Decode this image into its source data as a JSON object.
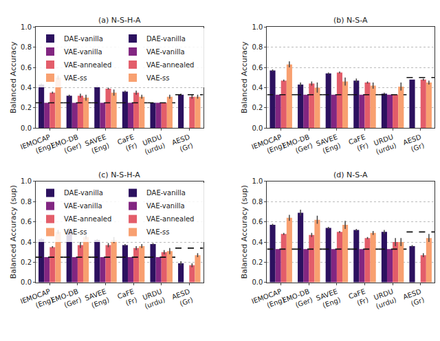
{
  "chart_data": [
    {
      "type": "bar",
      "title": "(a) N-S-H-A",
      "y_label": "Balanced Accuracy",
      "categories": [
        "IEMOCAP\n(Eng)",
        "EMO-DB\n(Ger)",
        "SAVEE\n(Eng)",
        "CaFE\n(Fr)",
        "URDU\n(urdu)",
        "AESD\n(Gr)"
      ],
      "series": [
        {
          "name": "DAE-vanilla",
          "color": "#2c115f",
          "values": [
            0.43,
            0.32,
            0.41,
            0.36,
            0.25,
            0.33
          ],
          "errors": [
            0.01,
            0.01,
            0.01,
            0.01,
            0.0,
            0.01
          ]
        },
        {
          "name": "VAE-vanilla",
          "color": "#822681",
          "values": [
            0.25,
            0.25,
            0.25,
            0.25,
            0.25,
            null
          ],
          "errors": [
            0.0,
            0.0,
            0.0,
            0.0,
            0.0,
            null
          ]
        },
        {
          "name": "VAE-annealed",
          "color": "#e35d6a",
          "values": [
            0.35,
            0.32,
            0.39,
            0.35,
            0.25,
            0.31
          ],
          "errors": [
            0.01,
            0.02,
            0.01,
            0.02,
            0.0,
            0.02
          ]
        },
        {
          "name": "VAE-ss",
          "color": "#f8a070",
          "values": [
            0.5,
            0.3,
            0.35,
            0.31,
            0.31,
            0.31
          ],
          "errors": [
            0.02,
            0.03,
            0.03,
            0.02,
            0.02,
            0.02
          ]
        }
      ],
      "reference_lines": [
        0.25,
        0.25,
        0.25,
        0.25,
        0.25,
        0.33
      ],
      "ylim": [
        0,
        1.0
      ],
      "yticks": [
        {
          "value": 0,
          "label": "0.0"
        },
        0.2,
        0.4,
        0.6,
        0.8,
        {
          "value": 1.0,
          "label": "1.0"
        }
      ],
      "grid": true,
      "legend": "upper left"
    },
    {
      "type": "bar",
      "title": "(b) N-S-A",
      "y_label": "Balanced Accuracy",
      "categories": [
        "IEMOCAP\n(Eng)",
        "EMO-DB\n(Ger)",
        "SAVEE\n(Eng)",
        "CaFE\n(Fr)",
        "URDU\n(urdu)",
        "AESD\n(Gr)"
      ],
      "series": [
        {
          "name": "DAE-vanilla",
          "color": "#2c115f",
          "values": [
            0.57,
            0.43,
            0.54,
            0.47,
            0.34,
            0.48
          ],
          "errors": [
            0.01,
            0.02,
            0.01,
            0.02,
            0.01,
            0.0
          ]
        },
        {
          "name": "VAE-vanilla",
          "color": "#822681",
          "values": [
            0.33,
            0.33,
            0.33,
            0.33,
            0.33,
            null
          ],
          "errors": [
            0.0,
            0.0,
            0.0,
            0.0,
            0.0,
            null
          ]
        },
        {
          "name": "VAE-annealed",
          "color": "#e35d6a",
          "values": [
            0.47,
            0.44,
            0.55,
            0.45,
            0.33,
            0.48
          ],
          "errors": [
            0.01,
            0.02,
            0.01,
            0.01,
            0.0,
            0.01
          ]
        },
        {
          "name": "VAE-ss",
          "color": "#f8a070",
          "values": [
            0.63,
            0.4,
            0.46,
            0.42,
            0.41,
            0.45
          ],
          "errors": [
            0.03,
            0.05,
            0.04,
            0.03,
            0.04,
            0.02
          ]
        }
      ],
      "reference_lines": [
        0.33,
        0.33,
        0.33,
        0.33,
        0.33,
        0.5
      ],
      "ylim": [
        0,
        1.0
      ],
      "yticks": [
        {
          "value": 0,
          "label": "0.0"
        },
        0.2,
        0.4,
        0.6,
        0.8,
        {
          "value": 1.0,
          "label": "1.0"
        }
      ],
      "grid": true,
      "legend": "upper left"
    },
    {
      "type": "bar",
      "title": "(c) N-S-H-A",
      "y_label": "Balanced Accuracy (sup)",
      "categories": [
        "IEMOCAP\n(Eng)",
        "EMO-DB\n(Ger)",
        "SAVEE\n(Eng)",
        "CaFE\n(Fr)",
        "URDU\n(urdu)",
        "AESD\n(Gr)"
      ],
      "series": [
        {
          "name": "DAE-vanilla",
          "color": "#2c115f",
          "values": [
            0.43,
            0.52,
            0.42,
            0.37,
            0.38,
            0.19
          ],
          "errors": [
            0.01,
            0.02,
            0.01,
            0.01,
            0.01,
            0.02
          ]
        },
        {
          "name": "VAE-vanilla",
          "color": "#822681",
          "values": [
            0.25,
            0.25,
            0.25,
            0.25,
            0.25,
            null
          ],
          "errors": [
            0.0,
            0.0,
            0.0,
            0.0,
            0.0,
            null
          ]
        },
        {
          "name": "VAE-annealed",
          "color": "#e35d6a",
          "values": [
            0.35,
            0.37,
            0.37,
            0.34,
            0.3,
            0.17
          ],
          "errors": [
            0.01,
            0.03,
            0.02,
            0.02,
            0.02,
            0.02
          ]
        },
        {
          "name": "VAE-ss",
          "color": "#f8a070",
          "values": [
            0.5,
            0.45,
            0.42,
            0.36,
            0.31,
            0.27
          ],
          "errors": [
            0.02,
            0.02,
            0.03,
            0.02,
            0.03,
            0.02
          ]
        }
      ],
      "reference_lines": [
        0.25,
        0.25,
        0.25,
        0.25,
        0.25,
        0.34
      ],
      "ylim": [
        0,
        1.0
      ],
      "yticks": [
        {
          "value": 0,
          "label": "0.0"
        },
        0.2,
        0.4,
        0.6,
        0.8,
        {
          "value": 1.0,
          "label": "1.0"
        }
      ],
      "grid": true,
      "legend": "upper left"
    },
    {
      "type": "bar",
      "title": "(d) N-S-A",
      "y_label": "Balanced Accuracy (sup)",
      "categories": [
        "IEMOCAP\n(Eng)",
        "EMO-DB\n(Ger)",
        "SAVEE\n(Eng)",
        "CaFE\n(Fr)",
        "URDU\n(urdu)",
        "AESD\n(Gr)"
      ],
      "series": [
        {
          "name": "DAE-vanilla",
          "color": "#2c115f",
          "values": [
            0.57,
            0.69,
            0.54,
            0.52,
            0.5,
            0.36
          ],
          "errors": [
            0.01,
            0.03,
            0.01,
            0.01,
            0.02,
            0.01
          ]
        },
        {
          "name": "VAE-vanilla",
          "color": "#822681",
          "values": [
            0.33,
            0.33,
            0.33,
            0.33,
            0.33,
            null
          ],
          "errors": [
            0.0,
            0.0,
            0.0,
            0.0,
            0.0,
            null
          ]
        },
        {
          "name": "VAE-annealed",
          "color": "#e35d6a",
          "values": [
            0.48,
            0.47,
            0.5,
            0.44,
            0.4,
            0.27
          ],
          "errors": [
            0.01,
            0.02,
            0.01,
            0.01,
            0.04,
            0.02
          ]
        },
        {
          "name": "VAE-ss",
          "color": "#f8a070",
          "values": [
            0.64,
            0.62,
            0.57,
            0.49,
            0.4,
            0.44
          ],
          "errors": [
            0.03,
            0.04,
            0.04,
            0.02,
            0.04,
            0.04
          ]
        }
      ],
      "reference_lines": [
        0.33,
        0.33,
        0.33,
        0.33,
        0.33,
        0.5
      ],
      "ylim": [
        0,
        1.0
      ],
      "yticks": [
        {
          "value": 0,
          "label": "0.0"
        },
        0.2,
        0.4,
        0.6,
        0.8,
        {
          "value": 1.0,
          "label": "1.0"
        }
      ],
      "grid": true,
      "legend": "upper left"
    }
  ]
}
